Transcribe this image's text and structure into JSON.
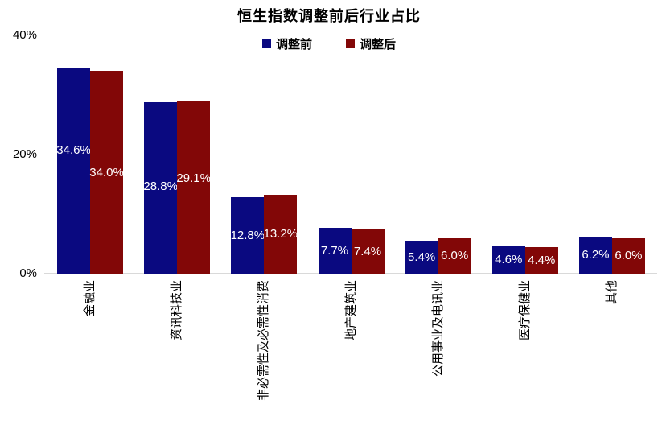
{
  "title": "恒生指数调整前后行业占比",
  "legend": {
    "before": "调整前",
    "after": "调整后"
  },
  "colors": {
    "before": "#0a0980",
    "after": "#820707",
    "axis_line": "#d9d9d9",
    "value_label": "#ffffff",
    "text": "#000000"
  },
  "chart_data": {
    "type": "bar",
    "title": "恒生指数调整前后行业占比",
    "categories": [
      "金融业",
      "资讯科技业",
      "非必需性及必需性消费",
      "地产建筑业",
      "公用事业及电讯业",
      "医疗保健业",
      "其他"
    ],
    "series": [
      {
        "name": "调整前",
        "color": "#0a0980",
        "values": [
          34.6,
          28.8,
          12.8,
          7.7,
          5.4,
          4.6,
          6.2
        ]
      },
      {
        "name": "调整后",
        "color": "#820707",
        "values": [
          34.0,
          29.1,
          13.2,
          7.4,
          6.0,
          4.4,
          6.0
        ]
      }
    ],
    "value_labels": {
      "before": [
        "34.6%",
        "28.8%",
        "12.8%",
        "7.7%",
        "5.4%",
        "4.6%",
        "6.2%"
      ],
      "after": [
        "34.0%",
        "29.1%",
        "13.2%",
        "7.4%",
        "6.0%",
        "4.4%",
        "6.0%"
      ]
    },
    "xlabel": "",
    "ylabel": "",
    "yticks": [
      "0%",
      "20%",
      "40%"
    ],
    "ytick_values": [
      0,
      20,
      40
    ],
    "ylim": [
      0,
      40
    ],
    "grid": false,
    "legend_position": "top-center",
    "layout": {
      "label_dy_before": [
        -25,
        -1,
        0,
        0,
        0,
        0,
        0
      ],
      "label_dy_after": [
        1,
        -10,
        0,
        0,
        0,
        0,
        0
      ]
    }
  }
}
